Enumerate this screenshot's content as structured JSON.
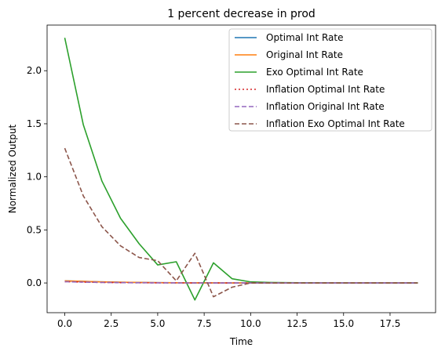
{
  "chart_data": {
    "type": "line",
    "title": "1 percent decrease in prod",
    "xlabel": "Time",
    "ylabel": "Normalized Output",
    "xlim": [
      -0.95,
      19.95
    ],
    "ylim": [
      -0.28,
      2.43
    ],
    "xticks": [
      0.0,
      2.5,
      5.0,
      7.5,
      10.0,
      12.5,
      15.0,
      17.5
    ],
    "xtick_labels": [
      "0.0",
      "2.5",
      "5.0",
      "7.5",
      "10.0",
      "12.5",
      "15.0",
      "17.5"
    ],
    "yticks": [
      0.0,
      0.5,
      1.0,
      1.5,
      2.0
    ],
    "ytick_labels": [
      "0.0",
      "0.5",
      "1.0",
      "1.5",
      "2.0"
    ],
    "grid": false,
    "legend_position": "top-right",
    "x": [
      0,
      1,
      2,
      3,
      4,
      5,
      6,
      7,
      8,
      9,
      10,
      11,
      12,
      13,
      14,
      15,
      16,
      17,
      18,
      19
    ],
    "series": [
      {
        "name": "Optimal Int Rate",
        "color": "#1f77b4",
        "dash": "solid",
        "values": [
          0.02,
          0.015,
          0.01,
          0.007,
          0.005,
          0.003,
          0.002,
          0.001,
          0.001,
          0.0,
          0.0,
          0.0,
          0.0,
          0.0,
          0.0,
          0.0,
          0.0,
          0.0,
          0.0,
          0.0
        ]
      },
      {
        "name": "Original Int Rate",
        "color": "#ff7f0e",
        "dash": "solid",
        "values": [
          0.02,
          0.015,
          0.01,
          0.007,
          0.005,
          0.003,
          0.002,
          0.001,
          0.001,
          0.0,
          0.0,
          0.0,
          0.0,
          0.0,
          0.0,
          0.0,
          0.0,
          0.0,
          0.0,
          0.0
        ]
      },
      {
        "name": "Exo Optimal Int Rate",
        "color": "#2ca02c",
        "dash": "solid",
        "values": [
          2.31,
          1.49,
          0.96,
          0.61,
          0.37,
          0.17,
          0.2,
          -0.16,
          0.19,
          0.04,
          0.01,
          0.005,
          0.003,
          0.002,
          0.001,
          0.0,
          0.0,
          0.0,
          0.0,
          0.0
        ]
      },
      {
        "name": "Inflation Optimal Int Rate",
        "color": "#d62728",
        "dash": "dotted",
        "values": [
          0.012,
          0.008,
          0.005,
          0.003,
          0.002,
          0.001,
          0.001,
          0.0,
          0.0,
          0.0,
          0.0,
          0.0,
          0.0,
          0.0,
          0.0,
          0.0,
          0.0,
          0.0,
          0.0,
          0.0
        ]
      },
      {
        "name": "Inflation Original Int Rate",
        "color": "#9467bd",
        "dash": "dashed",
        "values": [
          0.012,
          0.008,
          0.005,
          0.003,
          0.002,
          0.001,
          0.001,
          0.0,
          0.0,
          0.0,
          0.0,
          0.0,
          0.0,
          0.0,
          0.0,
          0.0,
          0.0,
          0.0,
          0.0,
          0.0
        ]
      },
      {
        "name": "Inflation Exo Optimal Int Rate",
        "color": "#8c564b",
        "dash": "dashed",
        "values": [
          1.27,
          0.82,
          0.53,
          0.35,
          0.24,
          0.21,
          0.02,
          0.28,
          -0.13,
          -0.04,
          0.0,
          0.0,
          0.0,
          0.0,
          0.0,
          0.0,
          0.0,
          0.0,
          0.0,
          0.0
        ]
      }
    ]
  }
}
